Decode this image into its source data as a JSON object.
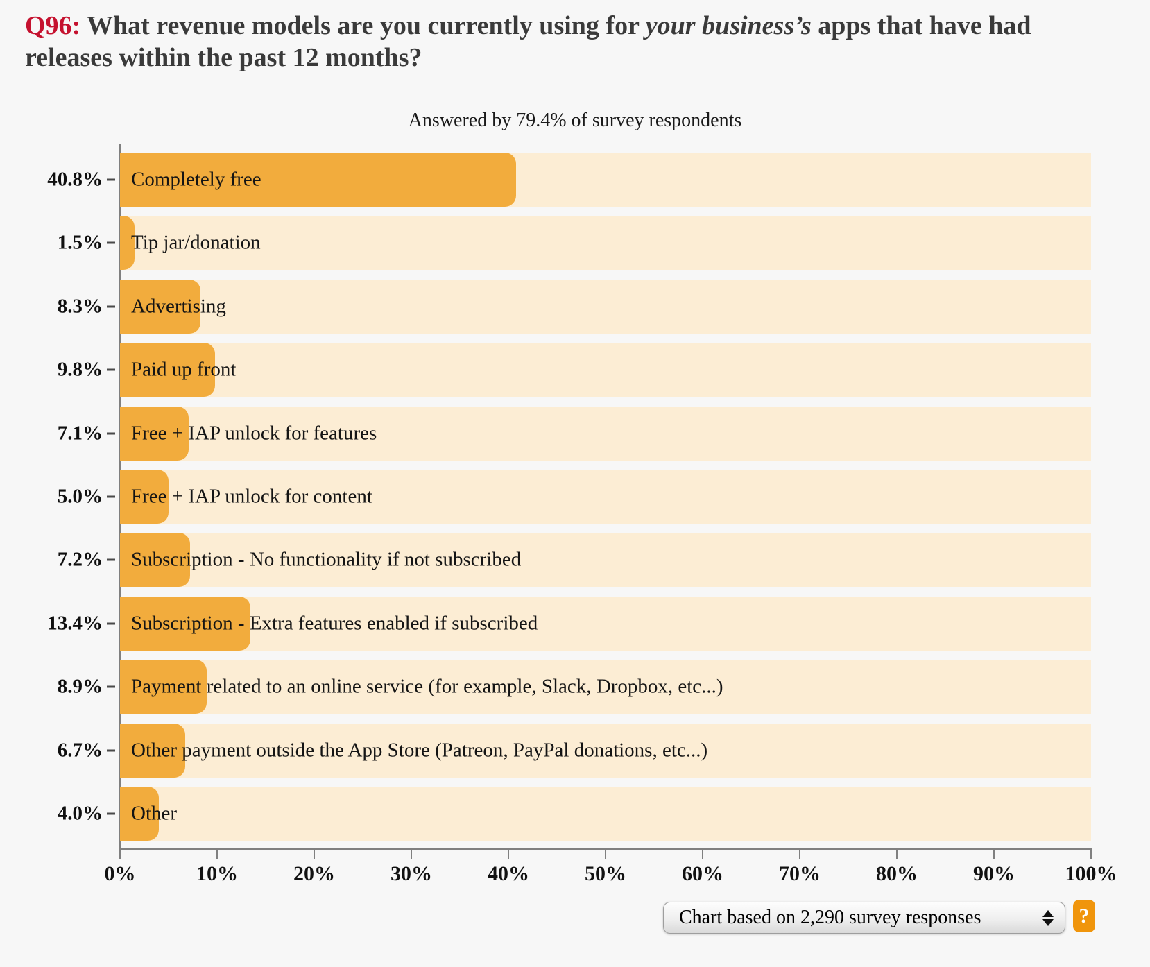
{
  "page": {
    "background": "#F7F7F7"
  },
  "title": {
    "number": "Q96:",
    "number_color": "#C5122F",
    "text_before_italic": " What revenue models are you currently using for ",
    "italic_text": "your business’s",
    "text_after_italic": " apps that have had releases within the past 12 months?"
  },
  "chart_data": {
    "type": "bar",
    "orientation": "horizontal",
    "title": "Q96: What revenue models are you currently using for your business’s apps that have had releases within the past 12 months?",
    "subtitle": "Answered by 79.4% of survey respondents",
    "categories": [
      "Completely free",
      "Tip jar/donation",
      "Advertising",
      "Paid up front",
      "Free + IAP unlock for features",
      "Free + IAP unlock for content",
      "Subscription - No functionality if not subscribed",
      "Subscription - Extra features enabled if subscribed",
      "Payment related to an online service (for example, Slack, Dropbox, etc...)",
      "Other payment outside the App Store (Patreon, PayPal donations, etc...)",
      "Other"
    ],
    "values": [
      40.8,
      1.5,
      8.3,
      9.8,
      7.1,
      5.0,
      7.2,
      13.4,
      8.9,
      6.7,
      4.0
    ],
    "value_labels": [
      "40.8%",
      "1.5%",
      "8.3%",
      "9.8%",
      "7.1%",
      "5.0%",
      "7.2%",
      "13.4%",
      "8.9%",
      "6.7%",
      "4.0%"
    ],
    "x_axis": {
      "min": 0,
      "max": 100,
      "ticks": [
        "0%",
        "10%",
        "20%",
        "30%",
        "40%",
        "50%",
        "60%",
        "70%",
        "80%",
        "90%",
        "100%"
      ]
    },
    "grid": false,
    "legend": false,
    "colors": {
      "bar": "#F2AC3D",
      "track": "#FCEDD4",
      "axis": "#808080"
    }
  },
  "footer": {
    "select_value": "Chart based on 2,290 survey responses",
    "help_label": "?"
  }
}
